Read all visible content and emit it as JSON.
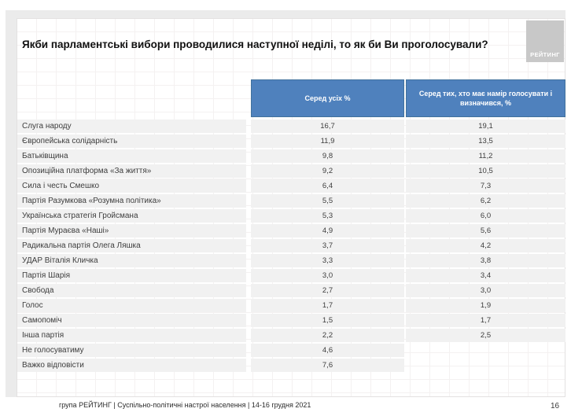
{
  "slide": {
    "title": "Якби парламентські вибори проводилися наступної неділі, то як би Ви проголосували?",
    "logo_text": "РЕЙТИНГ",
    "footer": "група РЕЙТИНГ | Суспільно-політичні настрої населення |  14-16 грудня 2021",
    "page_number": "16"
  },
  "table": {
    "columns": [
      "Серед усіх %",
      "Серед тих, хто має намір голосувати і визначився, %"
    ],
    "rows": [
      {
        "label": "Слуга народу",
        "all": "16,7",
        "decided": "19,1"
      },
      {
        "label": "Європейська солідарність",
        "all": "11,9",
        "decided": "13,5"
      },
      {
        "label": "Батьківщина",
        "all": "9,8",
        "decided": "11,2"
      },
      {
        "label": "Опозиційна платформа «За життя»",
        "all": "9,2",
        "decided": "10,5"
      },
      {
        "label": "Сила і честь Смешко",
        "all": "6,4",
        "decided": "7,3"
      },
      {
        "label": "Партія Разумкова «Розумна політика»",
        "all": "5,5",
        "decided": "6,2"
      },
      {
        "label": "Українська стратегія Гройсмана",
        "all": "5,3",
        "decided": "6,0"
      },
      {
        "label": "Партія Мураєва «Наші»",
        "all": "4,9",
        "decided": "5,6"
      },
      {
        "label": "Радикальна партія Олега Ляшка",
        "all": "3,7",
        "decided": "4,2"
      },
      {
        "label": "УДАР Віталія Кличка",
        "all": "3,3",
        "decided": "3,8"
      },
      {
        "label": "Партія Шарія",
        "all": "3,0",
        "decided": "3,4"
      },
      {
        "label": "Свобода",
        "all": "2,7",
        "decided": "3,0"
      },
      {
        "label": "Голос",
        "all": "1,7",
        "decided": "1,9"
      },
      {
        "label": "Самопоміч",
        "all": "1,5",
        "decided": "1,7"
      },
      {
        "label": "Інша партія",
        "all": "2,2",
        "decided": "2,5"
      },
      {
        "label": "Не голосуватиму",
        "all": "4,6",
        "decided": ""
      },
      {
        "label": "Важко відповісти",
        "all": "7,6",
        "decided": ""
      }
    ]
  },
  "colors": {
    "header_bg": "#4F81BD",
    "header_border": "#41719c",
    "header_text": "#ffffff",
    "row_bg": "#f1f1f1",
    "row_text": "#3d3d3d",
    "logo_bg": "#c8c8c8",
    "backdrop": "#ebebeb"
  },
  "chart_data": {
    "type": "table",
    "title": "Якби парламентські вибори проводилися наступної неділі, то як би Ви проголосували?",
    "columns": [
      "Серед усіх %",
      "Серед тих, хто має намір голосувати і визначився, %"
    ],
    "categories": [
      "Слуга народу",
      "Європейська солідарність",
      "Батьківщина",
      "Опозиційна платформа «За життя»",
      "Сила і честь Смешко",
      "Партія Разумкова «Розумна політика»",
      "Українська стратегія Гройсмана",
      "Партія Мураєва «Наші»",
      "Радикальна партія Олега Ляшка",
      "УДАР Віталія Кличка",
      "Партія Шарія",
      "Свобода",
      "Голос",
      "Самопоміч",
      "Інша партія",
      "Не голосуватиму",
      "Важко відповісти"
    ],
    "series": [
      {
        "name": "Серед усіх %",
        "values": [
          16.7,
          11.9,
          9.8,
          9.2,
          6.4,
          5.5,
          5.3,
          4.9,
          3.7,
          3.3,
          3.0,
          2.7,
          1.7,
          1.5,
          2.2,
          4.6,
          7.6
        ]
      },
      {
        "name": "Серед тих, хто має намір голосувати і визначився, %",
        "values": [
          19.1,
          13.5,
          11.2,
          10.5,
          7.3,
          6.2,
          6.0,
          5.6,
          4.2,
          3.8,
          3.4,
          3.0,
          1.9,
          1.7,
          2.5,
          null,
          null
        ]
      }
    ],
    "source": "група РЕЙТИНГ | Суспільно-політичні настрої населення |  14-16 грудня 2021"
  }
}
